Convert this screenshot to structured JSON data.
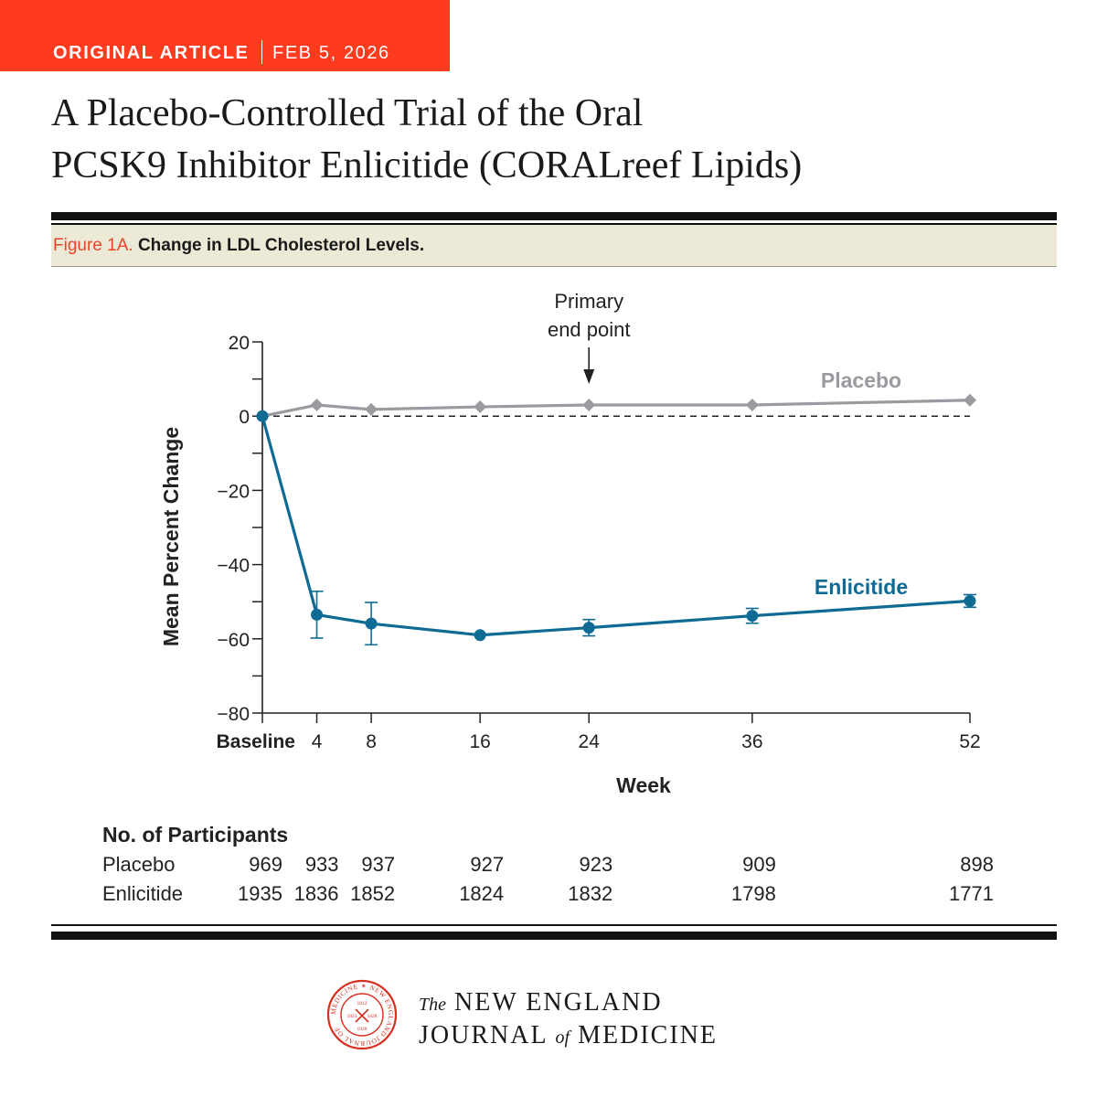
{
  "header": {
    "kind": "ORIGINAL ARTICLE",
    "date": "FEB 5, 2026"
  },
  "title_lines": [
    "A Placebo-Controlled Trial of the Oral",
    "PCSK9 Inhibitor Enlicitide (CORALreef Lipids)"
  ],
  "figure": {
    "label": "Figure 1A.",
    "caption": "Change in LDL Cholesterol Levels."
  },
  "colors": {
    "accent": "#ff3b1f",
    "enlicitide": "#0f6b94",
    "placebo": "#9a9aa0",
    "band": "#ecead7"
  },
  "chart_data": {
    "type": "line",
    "xlabel": "Week",
    "ylabel": "Mean Percent Change",
    "ylim": [
      -80,
      20
    ],
    "y_ticks": [
      20,
      0,
      -20,
      -40,
      -60,
      -80
    ],
    "x_ticks": [
      {
        "value": 0,
        "label": "Baseline"
      },
      {
        "value": 4,
        "label": "4"
      },
      {
        "value": 8,
        "label": "8"
      },
      {
        "value": 16,
        "label": "16"
      },
      {
        "value": 24,
        "label": "24"
      },
      {
        "value": 36,
        "label": "36"
      },
      {
        "value": 52,
        "label": "52"
      }
    ],
    "reference_line": {
      "y": 0,
      "style": "dashed"
    },
    "annotation": {
      "text_lines": [
        "Primary",
        "end point"
      ],
      "x": 24
    },
    "series": [
      {
        "name": "Placebo",
        "marker": "diamond",
        "points": [
          {
            "x": 0,
            "y": 0
          },
          {
            "x": 4,
            "y": 3
          },
          {
            "x": 8,
            "y": 1.8
          },
          {
            "x": 16,
            "y": 2.5
          },
          {
            "x": 24,
            "y": 3
          },
          {
            "x": 36,
            "y": 3
          },
          {
            "x": 52,
            "y": 4.3
          }
        ]
      },
      {
        "name": "Enlicitide",
        "marker": "circle",
        "points": [
          {
            "x": 0,
            "y": 0
          },
          {
            "x": 4,
            "y": -53.5,
            "err": 6.3
          },
          {
            "x": 8,
            "y": -55.9,
            "err": 5.7
          },
          {
            "x": 16,
            "y": -59
          },
          {
            "x": 24,
            "y": -57,
            "err": 2.2
          },
          {
            "x": 36,
            "y": -53.8,
            "err": 2
          },
          {
            "x": 52,
            "y": -49.8,
            "err": 1.7
          }
        ]
      }
    ],
    "participants": {
      "heading": "No. of Participants",
      "rows": [
        {
          "name": "Placebo",
          "values": [
            "969",
            "933",
            "937",
            "927",
            "923",
            "909",
            "898"
          ]
        },
        {
          "name": "Enlicitide",
          "values": [
            "1935",
            "1836",
            "1852",
            "1824",
            "1832",
            "1798",
            "1771"
          ]
        }
      ]
    }
  },
  "journal": {
    "the": "The",
    "line1": "NEW ENGLAND",
    "line2a": "JOURNAL",
    "of": "of",
    "line2b": "MEDICINE"
  },
  "seal": {
    "ring_text": "MEDICINE ✶ NEW ENGLAND JOURNAL OF",
    "years": [
      "1812",
      "1823",
      "1828",
      "1928"
    ]
  }
}
